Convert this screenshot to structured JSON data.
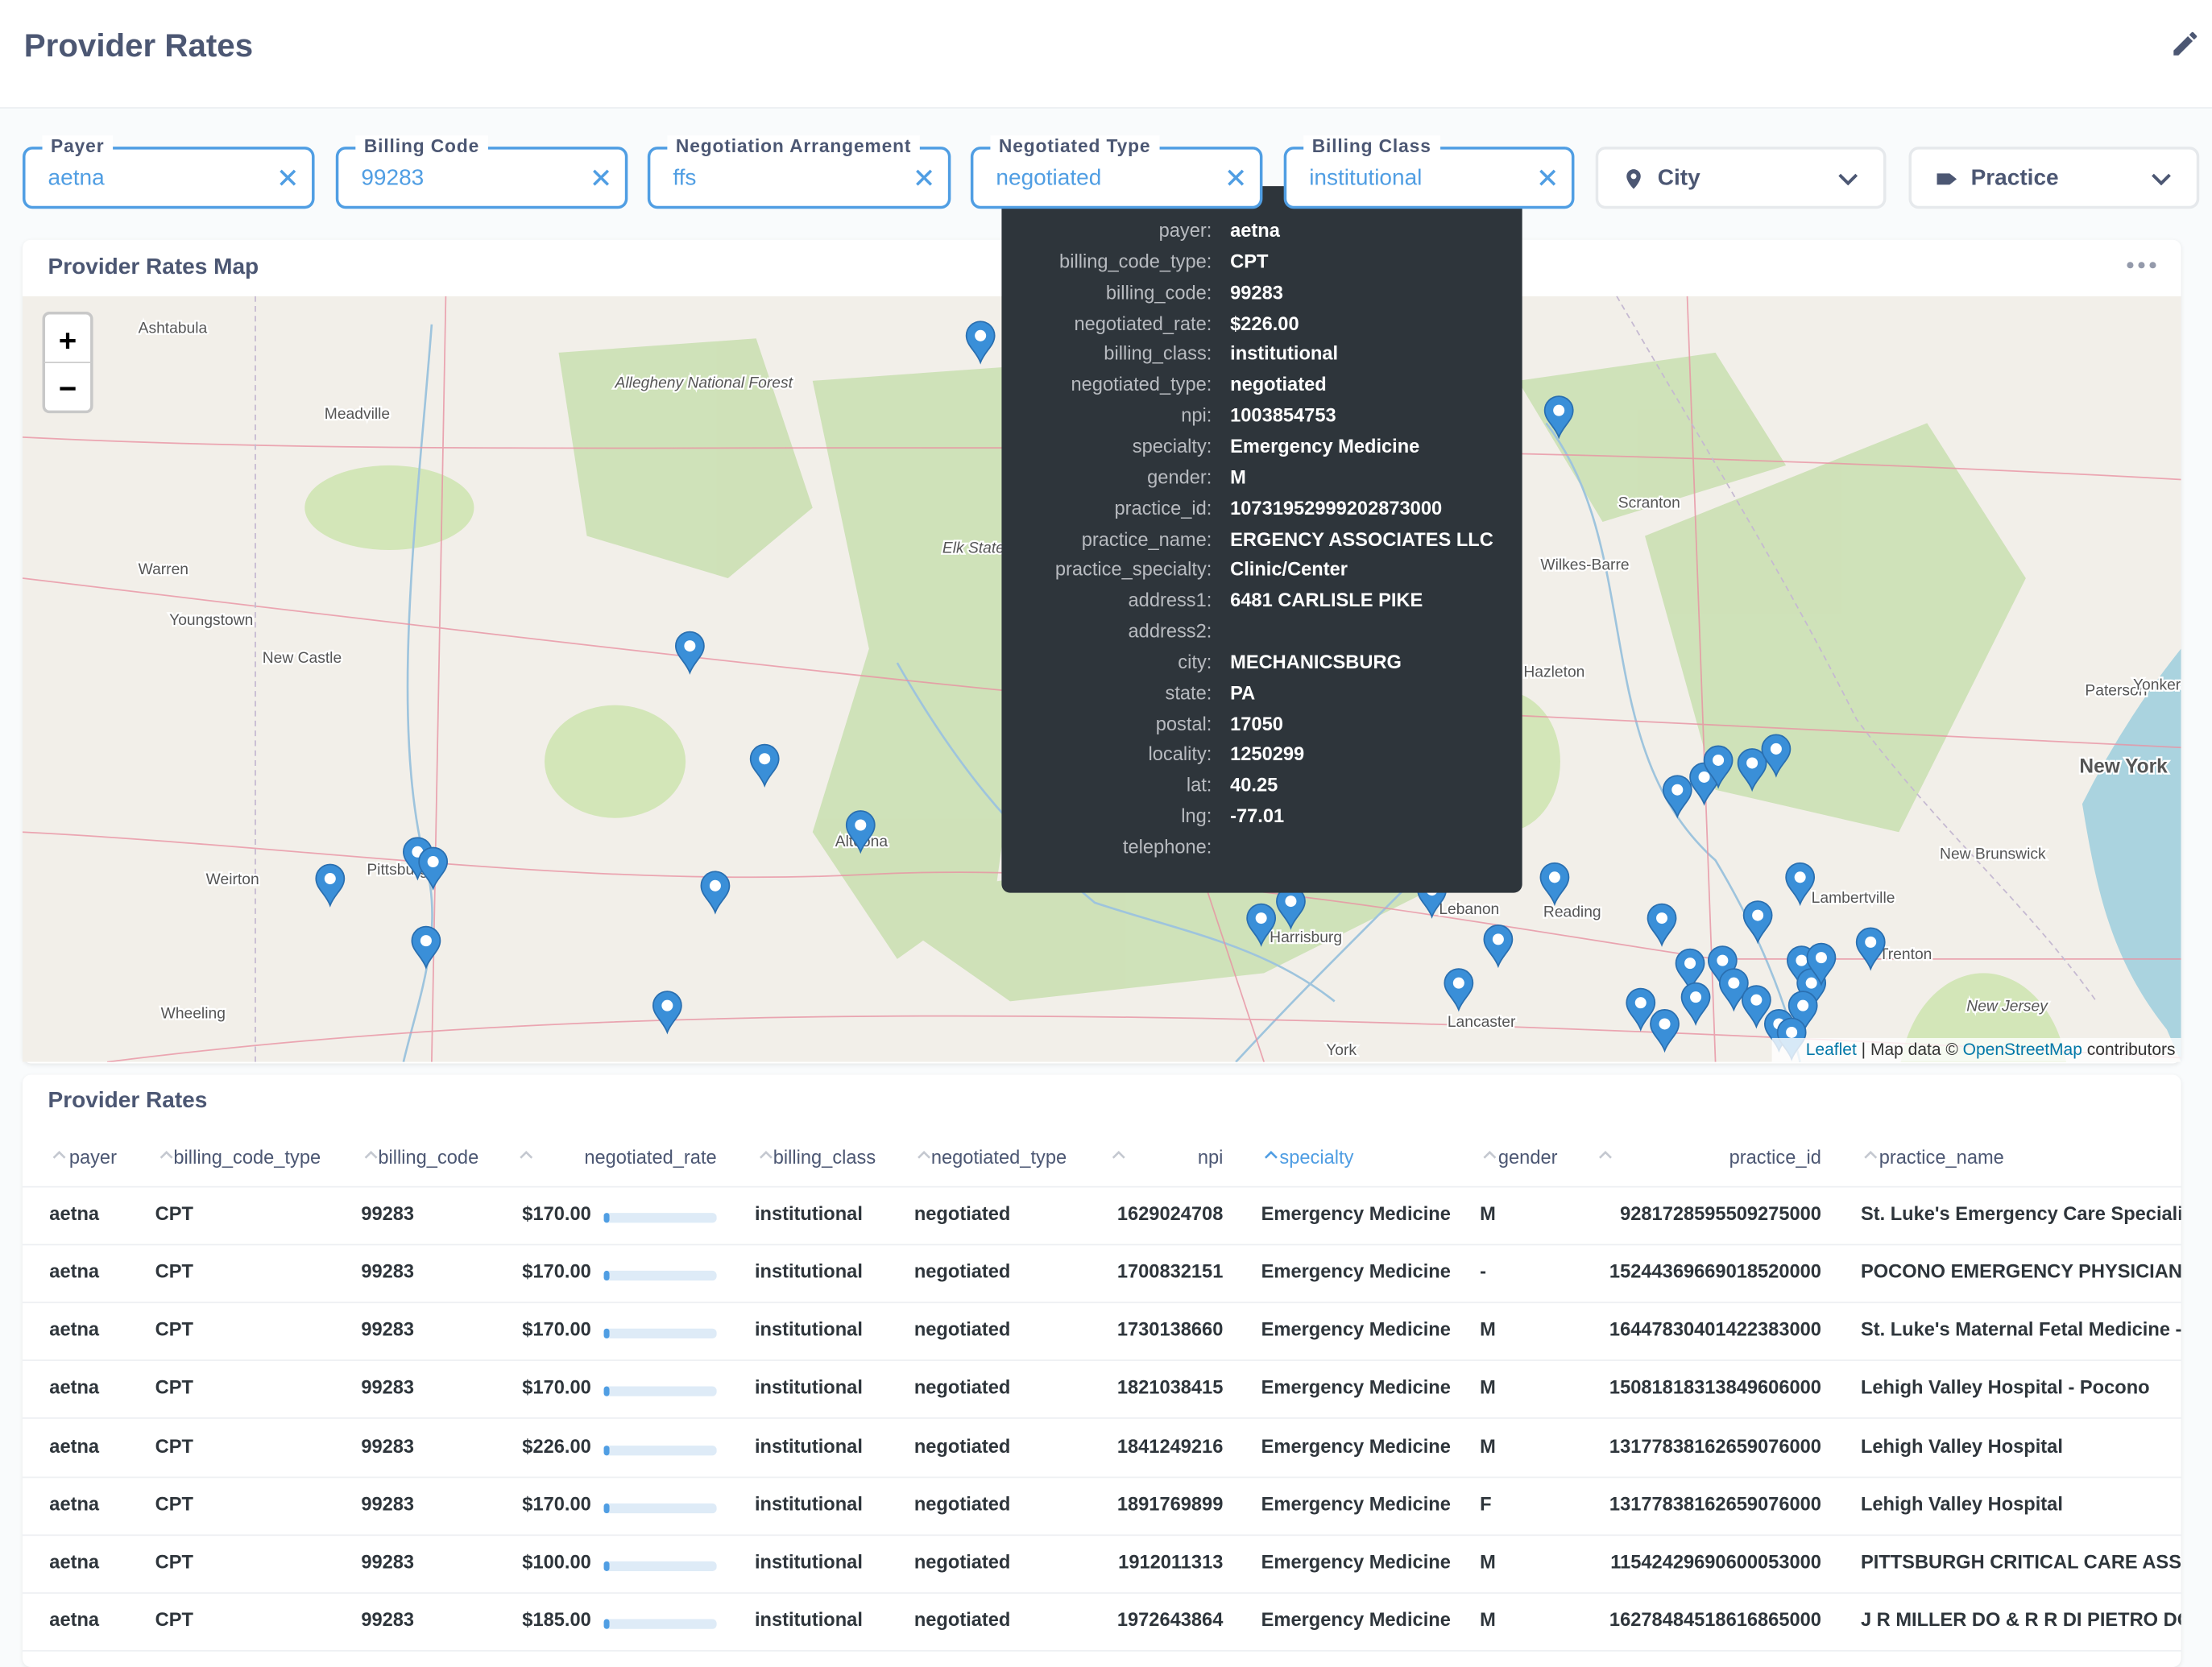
{
  "header": {
    "title": "Provider Rates"
  },
  "filters": [
    {
      "label": "Payer",
      "value": "aetna"
    },
    {
      "label": "Billing Code",
      "value": "99283"
    },
    {
      "label": "Negotiation Arrangement",
      "value": "ffs"
    },
    {
      "label": "Negotiated Type",
      "value": "negotiated"
    },
    {
      "label": "Billing Class",
      "value": "institutional"
    },
    {
      "placeholder": "City"
    },
    {
      "placeholder": "Practice"
    }
  ],
  "map": {
    "title": "Provider Rates Map",
    "zoom_in": "+",
    "zoom_out": "−",
    "places": [
      "Ashtabula",
      "Meadville",
      "Allegheny National Forest",
      "Warren",
      "Youngstown",
      "New Castle",
      "Weirton",
      "Pittsburgh",
      "Wheeling",
      "Altoona",
      "Elk State Forest",
      "Scranton",
      "Wilkes-Barre",
      "Hazleton",
      "Paterson",
      "Yonkers",
      "New York",
      "New Brunswick",
      "Lambertville",
      "Trenton",
      "Reading",
      "Lebanon",
      "Harrisburg",
      "Lancaster",
      "York",
      "New Jersey"
    ],
    "attribution": {
      "leaflet": "Leaflet",
      "data": "| Map data ©",
      "osm": "OpenStreetMap",
      "contributors": "contributors"
    }
  },
  "tooltip": {
    "rows": [
      {
        "label": "payer:",
        "value": "aetna"
      },
      {
        "label": "billing_code_type:",
        "value": "CPT"
      },
      {
        "label": "billing_code:",
        "value": "99283"
      },
      {
        "label": "negotiated_rate:",
        "value": "$226.00"
      },
      {
        "label": "billing_class:",
        "value": "institutional"
      },
      {
        "label": "negotiated_type:",
        "value": "negotiated"
      },
      {
        "label": "npi:",
        "value": "1003854753"
      },
      {
        "label": "specialty:",
        "value": "Emergency Medicine"
      },
      {
        "label": "gender:",
        "value": "M"
      },
      {
        "label": "practice_id:",
        "value": "10731952999202873000"
      },
      {
        "label": "practice_name:",
        "value": "ERGENCY ASSOCIATES LLC"
      },
      {
        "label": "practice_specialty:",
        "value": "Clinic/Center"
      },
      {
        "label": "address1:",
        "value": "6481 CARLISLE PIKE"
      },
      {
        "label": "address2:"
      },
      {
        "label": "city:",
        "value": "MECHANICSBURG"
      },
      {
        "label": "state:",
        "value": "PA"
      },
      {
        "label": "postal:",
        "value": "17050"
      },
      {
        "label": "locality:",
        "value": "1250299"
      },
      {
        "label": "lat:",
        "value": "40.25"
      },
      {
        "label": "lng:",
        "value": "-77.01"
      },
      {
        "label": "telephone:"
      }
    ]
  },
  "table": {
    "title": "Provider Rates",
    "columns": [
      "payer",
      "billing_code_type",
      "billing_code",
      "negotiated_rate",
      "billing_class",
      "negotiated_type",
      "npi",
      "specialty",
      "gender",
      "practice_id",
      "practice_name"
    ],
    "rows": [
      [
        "aetna",
        "CPT",
        "99283",
        "$170.00",
        "institutional",
        "negotiated",
        "1629024708",
        "Emergency Medicine",
        "M",
        "9281728595509275000",
        "St. Luke's Emergency Care Specialists"
      ],
      [
        "aetna",
        "CPT",
        "99283",
        "$170.00",
        "institutional",
        "negotiated",
        "1700832151",
        "Emergency Medicine",
        "-",
        "15244369669018520000",
        "POCONO EMERGENCY PHYSICIANS"
      ],
      [
        "aetna",
        "CPT",
        "99283",
        "$170.00",
        "institutional",
        "negotiated",
        "1730138660",
        "Emergency Medicine",
        "M",
        "16447830401422383000",
        "St. Luke's Maternal Fetal Medicine - E"
      ],
      [
        "aetna",
        "CPT",
        "99283",
        "$170.00",
        "institutional",
        "negotiated",
        "1821038415",
        "Emergency Medicine",
        "M",
        "15081818313849606000",
        "Lehigh Valley Hospital - Pocono"
      ],
      [
        "aetna",
        "CPT",
        "99283",
        "$226.00",
        "institutional",
        "negotiated",
        "1841249216",
        "Emergency Medicine",
        "M",
        "13177838162659076000",
        "Lehigh Valley Hospital"
      ],
      [
        "aetna",
        "CPT",
        "99283",
        "$170.00",
        "institutional",
        "negotiated",
        "1891769899",
        "Emergency Medicine",
        "F",
        "13177838162659076000",
        "Lehigh Valley Hospital"
      ],
      [
        "aetna",
        "CPT",
        "99283",
        "$100.00",
        "institutional",
        "negotiated",
        "1912011313",
        "Emergency Medicine",
        "M",
        "11542429690600053000",
        "PITTSBURGH CRITICAL CARE ASSOC"
      ],
      [
        "aetna",
        "CPT",
        "99283",
        "$185.00",
        "institutional",
        "negotiated",
        "1972643864",
        "Emergency Medicine",
        "M",
        "16278484518616865000",
        "J R MILLER DO & R R DI PIETRO DO A"
      ]
    ]
  }
}
